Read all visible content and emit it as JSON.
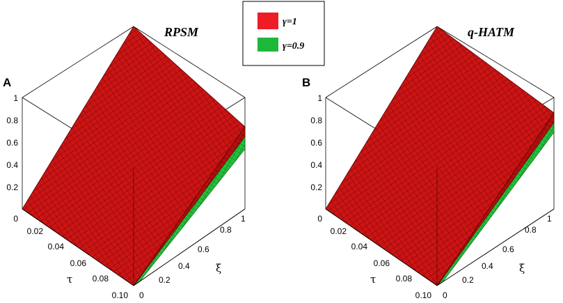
{
  "chart_data": [
    {
      "type": "surface3d",
      "panel_label": "A",
      "title": "RPSM",
      "zlabel_ticks": [
        "0",
        "0.2",
        "0.4",
        "0.6",
        "0.8",
        "1"
      ],
      "tau_ticks": [
        "0",
        "0.02",
        "0.04",
        "0.06",
        "0.08",
        "0.10"
      ],
      "xi_ticks": [
        "0",
        "0.2",
        "0.4",
        "0.6",
        "0.8",
        "1"
      ],
      "tau_label": "τ",
      "xi_label": "ξ",
      "zlim": [
        0,
        1
      ],
      "tau_range": [
        0,
        0.1
      ],
      "xi_range": [
        0,
        1
      ],
      "series": [
        {
          "name": "γ=1",
          "color": "#dd1111",
          "surface": "u(ξ,τ) ≈ ξ (planar, 0 to 1)"
        },
        {
          "name": "γ=0.9",
          "color": "#22bb33",
          "surface": "slightly below γ=1 at large ξ"
        }
      ]
    },
    {
      "type": "surface3d",
      "panel_label": "B",
      "title": "q-HATM",
      "zlabel_ticks": [
        "0",
        "0.2",
        "0.4",
        "0.6",
        "0.8",
        "1"
      ],
      "tau_ticks": [
        "0",
        "0.02",
        "0.04",
        "0.06",
        "0.08",
        "0.10"
      ],
      "xi_ticks": [
        "0",
        "0.2",
        "0.4",
        "0.6",
        "0.8",
        "1"
      ],
      "tau_label": "τ",
      "xi_label": "ξ",
      "zlim": [
        0,
        1
      ],
      "tau_range": [
        0,
        0.1
      ],
      "xi_range": [
        0,
        1
      ],
      "series": [
        {
          "name": "γ=1",
          "color": "#dd1111",
          "surface": "u(ξ,τ) ≈ ξ (planar, 0 to 1)"
        },
        {
          "name": "γ=0.9",
          "color": "#22bb33",
          "surface": "slightly below γ=1 at large ξ"
        }
      ]
    }
  ],
  "legend": {
    "items": [
      {
        "label": "γ=1",
        "color": "#ee1c24"
      },
      {
        "label": "γ=0.9",
        "color": "#1db83a"
      }
    ]
  }
}
